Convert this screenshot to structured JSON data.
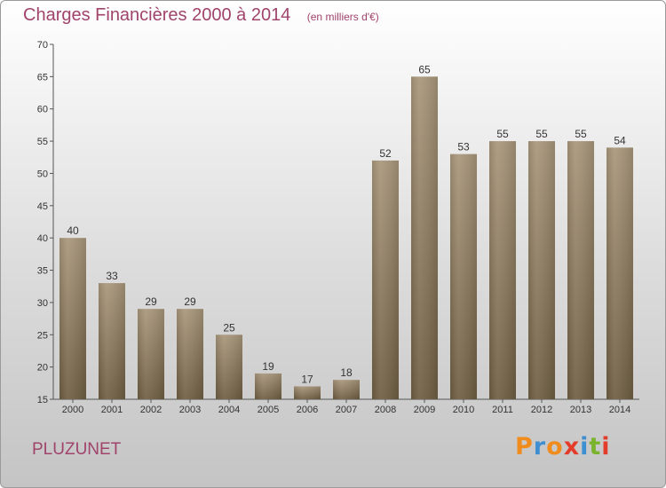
{
  "header": {
    "title": "Charges Financières 2000 à 2014",
    "subtitle": "(en milliers d'€)"
  },
  "footer": {
    "commune": "PLUZUNET",
    "logo_text": "Proxiti"
  },
  "colors": {
    "title": "#a0446c",
    "bar_top": "#a8967a",
    "bar_bottom": "#6e5d42",
    "logo_letters": [
      "#f08c1e",
      "#3e8fd1",
      "#f08c1e",
      "#e43c2a",
      "#3e8fd1",
      "#7ab32c",
      "#e43c2a"
    ]
  },
  "chart_data": {
    "type": "bar",
    "title": "Charges Financières 2000 à 2014",
    "subtitle": "(en milliers d'€)",
    "categories": [
      "2000",
      "2001",
      "2002",
      "2003",
      "2004",
      "2005",
      "2006",
      "2007",
      "2008",
      "2009",
      "2010",
      "2011",
      "2012",
      "2013",
      "2014"
    ],
    "values": [
      40,
      33,
      29,
      29,
      25,
      19,
      17,
      18,
      52,
      65,
      53,
      55,
      55,
      55,
      54
    ],
    "ylim": [
      15,
      70
    ],
    "yticks": [
      15,
      20,
      25,
      30,
      35,
      40,
      45,
      50,
      55,
      60,
      65,
      70
    ],
    "grid": false,
    "data_labels": true
  }
}
